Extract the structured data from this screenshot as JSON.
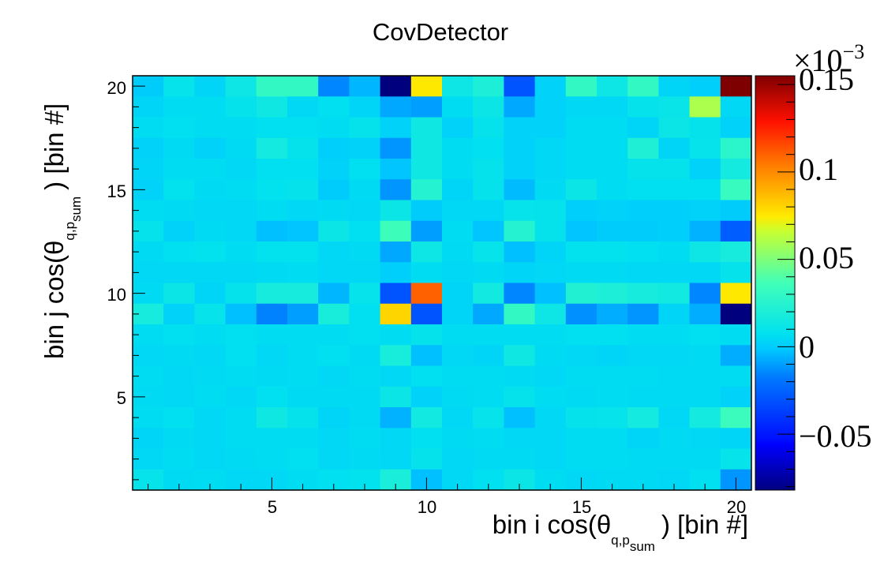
{
  "chart_data": {
    "type": "heatmap",
    "title": "CovDetector",
    "xlabel": {
      "prefix": "bin i cos(θ",
      "subscript": "q,p",
      "subsubscript": "sum",
      "suffix": ") [bin #]"
    },
    "ylabel": {
      "prefix": "bin j cos(θ",
      "subscript": "q,p",
      "subsubscript": "sum",
      "suffix": ") [bin #]"
    },
    "xlim": [
      0.5,
      20.5
    ],
    "ylim": [
      0.5,
      20.5
    ],
    "xticks": [
      "5",
      "10",
      "15",
      "20"
    ],
    "yticks": [
      "5",
      "10",
      "15",
      "20"
    ],
    "colorbar": {
      "range": [
        -0.082,
        0.155
      ],
      "multiplier": "×10",
      "exponent": "−3",
      "ticks": [
        "−0.05",
        "0",
        "0.05",
        "0.1",
        "0.15"
      ],
      "tick_values": [
        -0.05,
        0,
        0.05,
        0.1,
        0.15
      ]
    },
    "z_rows_top_to_bottom": [
      [
        0.0,
        0.01,
        0.003,
        0.013,
        0.03,
        0.03,
        -0.015,
        -0.005,
        -0.082,
        0.075,
        0.013,
        0.02,
        -0.03,
        0.002,
        0.03,
        0.013,
        0.03,
        0.003,
        0.001,
        0.155
      ],
      [
        0.003,
        0.006,
        0.006,
        0.009,
        0.014,
        0.004,
        0.007,
        0.003,
        -0.008,
        -0.01,
        0.006,
        0.012,
        -0.008,
        0.002,
        0.004,
        0.004,
        0.009,
        0.011,
        0.06,
        0.004
      ],
      [
        0.006,
        0.007,
        0.006,
        0.006,
        0.007,
        0.007,
        0.006,
        0.009,
        0.002,
        0.014,
        0.002,
        0.009,
        0.002,
        0.002,
        0.006,
        0.006,
        0.003,
        0.012,
        0.009,
        0.002
      ],
      [
        0.002,
        0.005,
        0.002,
        0.005,
        0.016,
        0.009,
        0.001,
        0.002,
        -0.012,
        0.014,
        0.006,
        0.007,
        0.002,
        0.004,
        0.006,
        0.006,
        0.021,
        0.003,
        0.01,
        0.027
      ],
      [
        0.003,
        0.006,
        0.006,
        0.004,
        0.007,
        0.007,
        0.002,
        0.007,
        -0.002,
        0.014,
        0.006,
        0.009,
        0.002,
        0.004,
        0.006,
        0.006,
        0.009,
        0.009,
        0.002,
        0.016
      ],
      [
        0.002,
        0.008,
        0.005,
        0.006,
        0.008,
        0.009,
        0.0,
        0.005,
        -0.012,
        0.024,
        0.003,
        0.009,
        -0.004,
        0.005,
        0.012,
        0.006,
        0.007,
        0.007,
        0.007,
        0.033
      ],
      [
        0.006,
        0.005,
        0.004,
        0.004,
        0.006,
        0.004,
        0.005,
        0.004,
        0.012,
        0.0,
        0.004,
        0.004,
        0.01,
        0.009,
        0.001,
        0.002,
        0.001,
        0.001,
        0.002,
        0.0
      ],
      [
        0.009,
        0.002,
        0.005,
        0.004,
        -0.003,
        -0.002,
        0.012,
        0.007,
        0.035,
        -0.01,
        0.006,
        -0.002,
        0.024,
        0.009,
        -0.002,
        0.0,
        0.0,
        0.001,
        -0.006,
        -0.027
      ],
      [
        0.005,
        0.007,
        0.008,
        0.006,
        0.008,
        0.008,
        0.004,
        0.005,
        -0.008,
        0.013,
        0.005,
        0.01,
        -0.003,
        0.003,
        0.008,
        0.008,
        0.007,
        0.006,
        0.013,
        0.017
      ],
      [
        0.004,
        0.004,
        0.004,
        0.004,
        0.005,
        0.006,
        0.004,
        0.004,
        0.001,
        0.006,
        0.004,
        0.005,
        0.003,
        0.004,
        0.005,
        0.005,
        0.004,
        0.004,
        0.004,
        0.009
      ],
      [
        0.005,
        0.012,
        0.003,
        0.009,
        0.017,
        0.017,
        -0.005,
        0.01,
        -0.03,
        0.11,
        0.003,
        0.015,
        -0.015,
        -0.003,
        0.022,
        0.02,
        0.017,
        0.015,
        -0.015,
        0.075
      ],
      [
        0.017,
        0.002,
        0.01,
        -0.003,
        -0.016,
        -0.01,
        0.018,
        0.007,
        0.08,
        -0.03,
        0.003,
        -0.008,
        0.03,
        0.013,
        -0.013,
        -0.007,
        -0.012,
        0.003,
        -0.007,
        -0.082
      ],
      [
        0.006,
        0.007,
        0.006,
        0.007,
        0.006,
        0.006,
        0.006,
        0.007,
        0.006,
        0.009,
        0.006,
        0.006,
        0.006,
        0.006,
        0.007,
        0.007,
        0.006,
        0.006,
        0.007,
        0.006
      ],
      [
        0.004,
        0.005,
        0.004,
        0.007,
        0.004,
        0.006,
        0.007,
        0.005,
        0.018,
        -0.003,
        0.004,
        0.003,
        0.014,
        0.005,
        0.004,
        0.003,
        0.004,
        0.004,
        0.005,
        -0.007
      ],
      [
        0.006,
        0.004,
        0.005,
        0.006,
        0.005,
        0.006,
        0.004,
        0.006,
        0.004,
        0.007,
        0.006,
        0.006,
        0.005,
        0.004,
        0.006,
        0.006,
        0.006,
        0.005,
        0.005,
        0.006
      ],
      [
        0.005,
        0.004,
        0.006,
        0.004,
        0.007,
        0.005,
        0.005,
        0.005,
        0.012,
        0.002,
        0.005,
        0.006,
        0.009,
        0.006,
        0.005,
        0.006,
        0.005,
        0.005,
        0.005,
        0.002
      ],
      [
        0.006,
        0.007,
        0.004,
        0.006,
        0.014,
        0.009,
        0.003,
        0.005,
        -0.006,
        0.015,
        0.004,
        0.01,
        -0.003,
        0.004,
        0.009,
        0.01,
        0.016,
        0.004,
        0.016,
        0.034
      ],
      [
        0.003,
        0.005,
        0.004,
        0.006,
        0.006,
        0.006,
        0.004,
        0.006,
        0.004,
        0.007,
        0.005,
        0.006,
        0.004,
        0.004,
        0.006,
        0.006,
        0.003,
        0.005,
        0.004,
        0.003
      ],
      [
        0.004,
        0.006,
        0.004,
        0.005,
        0.006,
        0.007,
        0.004,
        0.005,
        0.004,
        0.009,
        0.004,
        0.005,
        0.005,
        0.004,
        0.006,
        0.006,
        0.005,
        0.005,
        0.005,
        0.01
      ],
      [
        0.01,
        0.005,
        0.006,
        0.004,
        0.004,
        0.006,
        0.007,
        0.008,
        0.019,
        -0.003,
        0.004,
        0.007,
        0.012,
        0.006,
        0.004,
        0.005,
        0.005,
        0.004,
        0.007,
        -0.012
      ]
    ]
  }
}
